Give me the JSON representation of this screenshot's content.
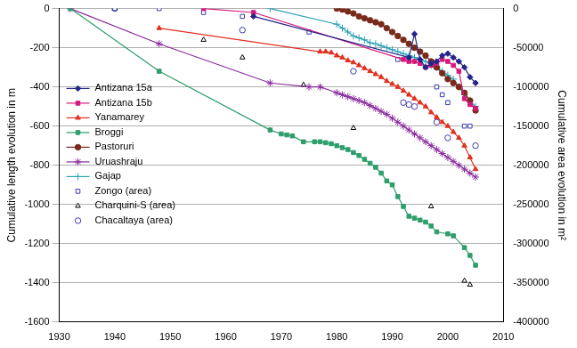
{
  "chart_data": {
    "type": "scatter",
    "ylabel": "Cumulative length evolution in m",
    "y2label": "Cumulative area evolution in m²",
    "xlim": [
      1930,
      2010
    ],
    "xticks": [
      1930,
      1940,
      1950,
      1960,
      1970,
      1980,
      1990,
      2000,
      2010
    ],
    "ylim": [
      -1600,
      0
    ],
    "yticks": [
      -1600,
      -1400,
      -1200,
      -1000,
      -800,
      -600,
      -400,
      -200,
      0
    ],
    "y2lim": [
      -400000,
      0
    ],
    "y2ticks": [
      -400000,
      -350000,
      -300000,
      -250000,
      -200000,
      -150000,
      -100000,
      -50000,
      0
    ],
    "grid": true,
    "legend": "left",
    "series": [
      {
        "name": "Antizana 15a",
        "color": "#24248a",
        "marker": "diamond",
        "line_style": "solid",
        "x": [
          1965,
          1993,
          1994,
          1995,
          1996,
          1997,
          1998,
          1999,
          2000,
          2001,
          2002,
          2003,
          2004,
          2005
        ],
        "values": [
          -40,
          -250,
          -130,
          -260,
          -300,
          -280,
          -270,
          -240,
          -230,
          -250,
          -270,
          -300,
          -350,
          -380
        ]
      },
      {
        "name": "Antizana 15b",
        "color": "#d6197b",
        "marker": "square",
        "line_style": "solid",
        "x": [
          1956,
          1965,
          1992,
          1993,
          1994,
          1995,
          1996,
          1997,
          1998,
          1999,
          2000,
          2001,
          2002,
          2003,
          2004,
          2005
        ],
        "values": [
          0,
          -20,
          -260,
          -270,
          -270,
          -280,
          -300,
          -290,
          -280,
          -260,
          -270,
          -290,
          -320,
          -460,
          -490,
          -510
        ]
      },
      {
        "name": "Yanamarey",
        "color": "#e0301e",
        "marker": "triangle",
        "line_style": "solid",
        "x": [
          1948,
          1977,
          1978,
          1979,
          1980,
          1981,
          1982,
          1983,
          1984,
          1985,
          1986,
          1987,
          1988,
          1989,
          1990,
          1991,
          1992,
          1993,
          1994,
          1995,
          1996,
          1997,
          1998,
          1999,
          2000,
          2001,
          2002,
          2003,
          2004,
          2005
        ],
        "values": [
          -100,
          -220,
          -220,
          -225,
          -240,
          -250,
          -265,
          -275,
          -290,
          -305,
          -320,
          -335,
          -350,
          -370,
          -385,
          -400,
          -420,
          -440,
          -460,
          -480,
          -500,
          -530,
          -555,
          -580,
          -600,
          -630,
          -660,
          -700,
          -760,
          -820
        ]
      },
      {
        "name": "Broggi",
        "color": "#2e9e6b",
        "marker": "square",
        "line_style": "solid",
        "x": [
          1932,
          1948,
          1968,
          1970,
          1971,
          1972,
          1974,
          1976,
          1977,
          1978,
          1979,
          1980,
          1981,
          1982,
          1983,
          1984,
          1985,
          1986,
          1987,
          1988,
          1989,
          1990,
          1991,
          1992,
          1993,
          1994,
          1995,
          1996,
          1997,
          1998,
          2000,
          2001,
          2003,
          2004,
          2005
        ],
        "values": [
          0,
          -320,
          -620,
          -640,
          -645,
          -650,
          -680,
          -680,
          -680,
          -685,
          -690,
          -700,
          -710,
          -720,
          -735,
          -750,
          -770,
          -790,
          -810,
          -840,
          -880,
          -900,
          -960,
          -1010,
          -1060,
          -1070,
          -1080,
          -1090,
          -1110,
          -1140,
          -1150,
          -1160,
          -1220,
          -1260,
          -1310
        ]
      },
      {
        "name": "Pastoruri",
        "color": "#7a2a1a",
        "marker": "circle",
        "line_style": "solid",
        "x": [
          1980,
          1981,
          1982,
          1983,
          1984,
          1985,
          1986,
          1987,
          1988,
          1989,
          1990,
          1991,
          1992,
          1993,
          1994,
          1995,
          1996,
          1997,
          1998,
          1999,
          2000,
          2001,
          2002,
          2003,
          2004,
          2005
        ],
        "values": [
          0,
          -5,
          -15,
          -25,
          -40,
          -50,
          -60,
          -70,
          -80,
          -100,
          -120,
          -140,
          -160,
          -180,
          -200,
          -220,
          -240,
          -270,
          -300,
          -330,
          -360,
          -380,
          -400,
          -430,
          -470,
          -520
        ]
      },
      {
        "name": "Uruashraju",
        "color": "#8a2b9e",
        "marker": "star",
        "line_style": "solid",
        "x": [
          1932,
          1948,
          1968,
          1975,
          1977,
          1980,
          1981,
          1982,
          1983,
          1984,
          1985,
          1986,
          1987,
          1988,
          1989,
          1990,
          1991,
          1992,
          1993,
          1994,
          1995,
          1996,
          1997,
          1998,
          1999,
          2000,
          2001,
          2002,
          2003,
          2004,
          2005
        ],
        "values": [
          0,
          -180,
          -380,
          -400,
          -400,
          -430,
          -440,
          -450,
          -460,
          -470,
          -480,
          -495,
          -510,
          -525,
          -540,
          -560,
          -580,
          -600,
          -620,
          -640,
          -660,
          -680,
          -700,
          -720,
          -740,
          -760,
          -780,
          -800,
          -820,
          -840,
          -860
        ]
      },
      {
        "name": "Gajap",
        "color": "#2aa0b4",
        "marker": "cross",
        "line_style": "solid",
        "x": [
          1968,
          1980,
          1981,
          1982,
          1983,
          1984,
          1985,
          1986,
          1987,
          1988,
          1989,
          1990,
          1991,
          1992,
          1993,
          1994,
          1995,
          1996,
          1997,
          1998,
          1999,
          2000,
          2001,
          2002,
          2003,
          2004,
          2005
        ],
        "values": [
          0,
          -80,
          -100,
          -120,
          -140,
          -150,
          -160,
          -175,
          -180,
          -190,
          -200,
          -210,
          -220,
          -230,
          -240,
          -250,
          -260,
          -270,
          -290,
          -300,
          -320,
          -340,
          -360,
          -400,
          -440,
          -470,
          -500
        ]
      },
      {
        "name": "Zongo (area)",
        "color": "#3a3ab0",
        "marker": "open-square",
        "line_style": "none",
        "axis": "y2",
        "x": [
          1940,
          1948,
          1956,
          1963,
          1975,
          1991,
          1993,
          1998,
          1999,
          2000,
          2003,
          2004
        ],
        "values": [
          0,
          0,
          -5000,
          -10000,
          -30000,
          -65000,
          -65000,
          -100000,
          -110000,
          -120000,
          -150000,
          -150000
        ]
      },
      {
        "name": "Charquini-S (area)",
        "color": "#000000",
        "marker": "open-triangle",
        "line_style": "none",
        "axis": "y2",
        "x": [
          1940,
          1956,
          1963,
          1974,
          1983,
          1997,
          2003,
          2004
        ],
        "values": [
          0,
          -40000,
          -62500,
          -97500,
          -152500,
          -252500,
          -347500,
          -352500
        ]
      },
      {
        "name": "Chacaltaya (area)",
        "color": "#3a3ab0",
        "marker": "open-circle",
        "line_style": "none",
        "axis": "y2",
        "x": [
          1940,
          1963,
          1983,
          1992,
          1993,
          1994,
          1998,
          2000,
          2005
        ],
        "values": [
          0,
          -27500,
          -80000,
          -120000,
          -122500,
          -125000,
          -145000,
          -165000,
          -175000
        ]
      }
    ]
  }
}
